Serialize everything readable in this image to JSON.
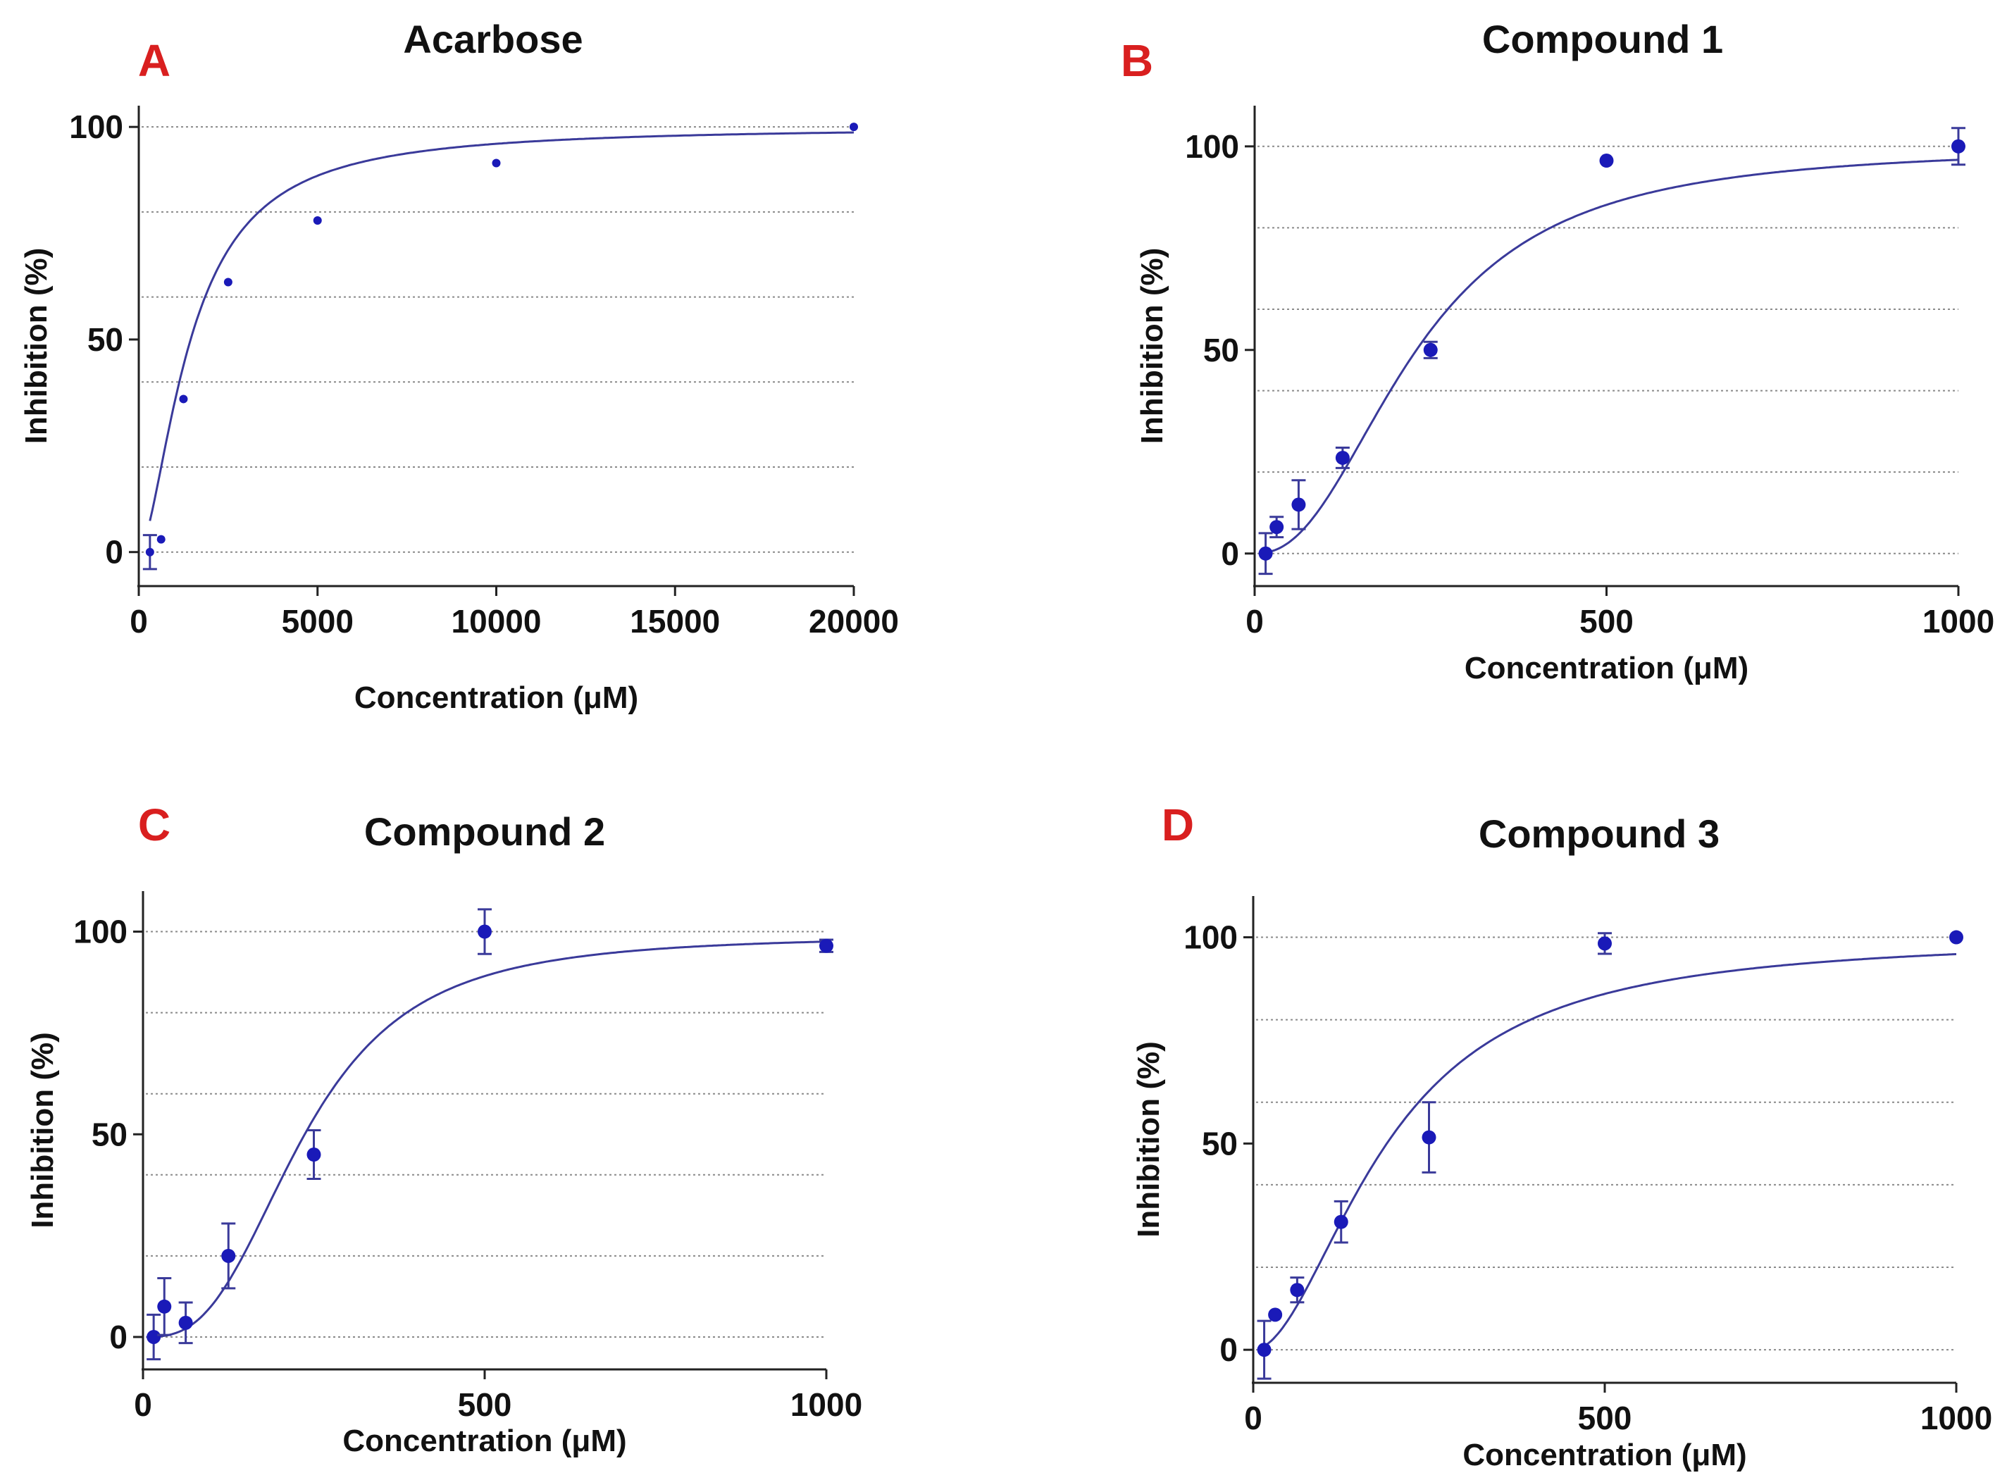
{
  "chart_data": [
    {
      "id": "A",
      "type": "scatter",
      "panel_letter": "A",
      "title": "Acarbose",
      "xlabel": "Concentration (μM)",
      "ylabel": "Inhibition (%)",
      "xlim": [
        0,
        20000
      ],
      "ylim": [
        -8,
        105
      ],
      "xticks": [
        0,
        5000,
        10000,
        15000,
        20000
      ],
      "xtick_labels": [
        "0",
        "5000",
        "10000",
        "15000",
        "20000"
      ],
      "yticks": [
        0,
        50,
        100
      ],
      "ytick_labels": [
        "0",
        "50",
        "100"
      ],
      "gridlines_y": [
        0,
        20,
        40,
        60,
        80,
        100
      ],
      "grid": "dotted horizontal",
      "fit_curve": {
        "top": 100,
        "ec50": 1450,
        "hill": 1.65
      },
      "points": [
        {
          "x": 312,
          "y": 0,
          "err": 4
        },
        {
          "x": 625,
          "y": 3,
          "err": 0
        },
        {
          "x": 1250,
          "y": 36,
          "err": 0
        },
        {
          "x": 2500,
          "y": 63.5,
          "err": 0
        },
        {
          "x": 5000,
          "y": 78,
          "err": 0
        },
        {
          "x": 10000,
          "y": 91.5,
          "err": 0
        },
        {
          "x": 20000,
          "y": 100,
          "err": 0
        }
      ]
    },
    {
      "id": "B",
      "type": "scatter",
      "panel_letter": "B",
      "title": "Compound 1",
      "xlabel": "Concentration (μM)",
      "ylabel": "Inhibition (%)",
      "xlim": [
        0,
        1000
      ],
      "ylim": [
        -8,
        110
      ],
      "xticks": [
        0,
        500,
        1000
      ],
      "xtick_labels": [
        "0",
        "500",
        "1000"
      ],
      "yticks": [
        0,
        50,
        100
      ],
      "ytick_labels": [
        "0",
        "50",
        "100"
      ],
      "gridlines_y": [
        0,
        20,
        40,
        60,
        80,
        100
      ],
      "grid": "dotted horizontal",
      "fit_curve": {
        "top": 100,
        "ec50": 230,
        "hill": 2.3
      },
      "points": [
        {
          "x": 15.6,
          "y": 0,
          "err": 5
        },
        {
          "x": 31.2,
          "y": 6.5,
          "err": 2.5
        },
        {
          "x": 62.5,
          "y": 12,
          "err": 6
        },
        {
          "x": 125,
          "y": 23.5,
          "err": 2.5
        },
        {
          "x": 250,
          "y": 50,
          "err": 2
        },
        {
          "x": 500,
          "y": 96.5,
          "err": 0
        },
        {
          "x": 1000,
          "y": 100,
          "err": 4.5
        }
      ]
    },
    {
      "id": "C",
      "type": "scatter",
      "panel_letter": "C",
      "title": "Compound 2",
      "xlabel": "Concentration (μM)",
      "ylabel": "Inhibition (%)",
      "xlim": [
        0,
        1000
      ],
      "ylim": [
        -8,
        110
      ],
      "xticks": [
        0,
        500,
        1000
      ],
      "xtick_labels": [
        "0",
        "500",
        "1000"
      ],
      "yticks": [
        0,
        50,
        100
      ],
      "ytick_labels": [
        "0",
        "50",
        "100"
      ],
      "gridlines_y": [
        0,
        20,
        40,
        60,
        80,
        100
      ],
      "grid": "dotted horizontal",
      "fit_curve": {
        "top": 99,
        "ec50": 235,
        "hill": 2.9
      },
      "points": [
        {
          "x": 15.6,
          "y": 0,
          "err": 5.5
        },
        {
          "x": 31.2,
          "y": 7.5,
          "err": 7
        },
        {
          "x": 62.5,
          "y": 3.5,
          "err": 5
        },
        {
          "x": 125,
          "y": 20,
          "err": 8
        },
        {
          "x": 250,
          "y": 45,
          "err": 6
        },
        {
          "x": 500,
          "y": 100,
          "err": 5.5
        },
        {
          "x": 1000,
          "y": 96.5,
          "err": 1.5
        }
      ]
    },
    {
      "id": "D",
      "type": "scatter",
      "panel_letter": "D",
      "title": "Compound 3",
      "xlabel": "Concentration (μM)",
      "ylabel": "Inhibition (%)",
      "xlim": [
        0,
        1000
      ],
      "ylim": [
        -8,
        110
      ],
      "xticks": [
        0,
        500,
        1000
      ],
      "xtick_labels": [
        "0",
        "500",
        "1000"
      ],
      "yticks": [
        0,
        50,
        100
      ],
      "ytick_labels": [
        "0",
        "50",
        "100"
      ],
      "gridlines_y": [
        0,
        20,
        40,
        60,
        80,
        100
      ],
      "grid": "dotted horizontal",
      "fit_curve": {
        "top": 100,
        "ec50": 190,
        "hill": 1.9
      },
      "points": [
        {
          "x": 15.6,
          "y": 0,
          "err": 7
        },
        {
          "x": 31.2,
          "y": 8.5,
          "err": 0
        },
        {
          "x": 62.5,
          "y": 14.5,
          "err": 3
        },
        {
          "x": 125,
          "y": 31,
          "err": 5
        },
        {
          "x": 250,
          "y": 51.5,
          "err": 8.5
        },
        {
          "x": 500,
          "y": 98.5,
          "err": 2.5
        },
        {
          "x": 1000,
          "y": 100,
          "err": 0
        }
      ]
    }
  ],
  "colors": {
    "data": "#1a1ab8",
    "curve": "#3a3a9a",
    "panel_letter": "#d91f1f",
    "axis": "#222222",
    "grid": "#8a8a8a"
  }
}
